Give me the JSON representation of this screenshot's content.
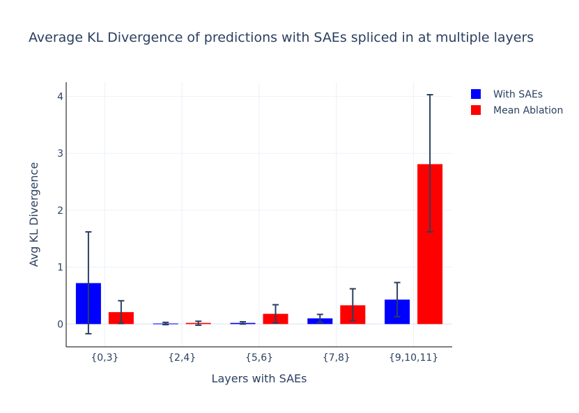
{
  "chart_data": {
    "type": "bar",
    "title": "Average KL Divergence of predictions with SAEs spliced in at multiple layers",
    "xlabel": "Layers with SAEs",
    "ylabel": "Avg KL Divergence",
    "categories": [
      "{0,3}",
      "{2,4}",
      "{5,6}",
      "{7,8}",
      "{9,10,11}"
    ],
    "ylim": [
      -0.4,
      4.25
    ],
    "yticks": [
      0,
      1,
      2,
      3,
      4
    ],
    "grid": true,
    "legend_position": "top-right",
    "series": [
      {
        "name": "With SAEs",
        "color": "#0000ff",
        "values": [
          0.72,
          0.01,
          0.02,
          0.1,
          0.43
        ],
        "error_low": [
          -0.17,
          -0.01,
          0.0,
          0.03,
          0.13
        ],
        "error_high": [
          1.62,
          0.03,
          0.04,
          0.17,
          0.73
        ]
      },
      {
        "name": "Mean Ablation",
        "color": "#ff0000",
        "values": [
          0.21,
          0.02,
          0.18,
          0.33,
          2.81
        ],
        "error_low": [
          0.01,
          -0.02,
          0.02,
          0.06,
          1.62
        ],
        "error_high": [
          0.41,
          0.05,
          0.34,
          0.62,
          4.03
        ]
      }
    ]
  },
  "style": {
    "text_color": "#2a3f5f",
    "grid_color": "#ebf0f8",
    "axis_color": "#000000",
    "error_color": "#2a3f5f"
  }
}
